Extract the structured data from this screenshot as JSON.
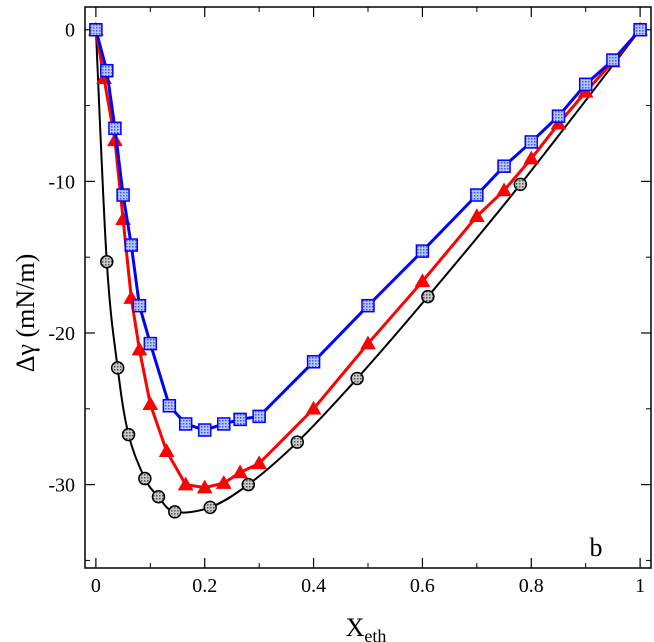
{
  "chart_data": {
    "type": "line",
    "title": "",
    "xlabel": "X",
    "xlabel_subscript": "eth",
    "ylabel": "Δγ (mN/m)",
    "xlim": [
      -0.02,
      1.02
    ],
    "ylim": [
      -35.5,
      1.5
    ],
    "xticks": [
      0,
      0.2,
      0.4,
      0.6,
      0.8,
      1
    ],
    "xtick_labels": [
      "0",
      "0.2",
      "0.4",
      "0.6",
      "0.8",
      "1"
    ],
    "yticks": [
      0,
      -10,
      -20,
      -30
    ],
    "ytick_labels": [
      "0",
      "-10",
      "-20",
      "-30"
    ],
    "panel_label": "b",
    "grid": false,
    "series": [
      {
        "name": "black circles",
        "color": "#000000",
        "marker": "circle",
        "marker_fill": "#b0b0b0",
        "x": [
          0,
          0.02,
          0.04,
          0.06,
          0.09,
          0.115,
          0.145,
          0.21,
          0.28,
          0.37,
          0.48,
          0.61,
          0.78,
          1.0
        ],
        "y": [
          0,
          -15.3,
          -22.3,
          -26.7,
          -29.6,
          -30.8,
          -31.8,
          -31.5,
          -30.0,
          -27.2,
          -23.0,
          -17.6,
          -10.2,
          0
        ]
      },
      {
        "name": "red triangles",
        "color": "#ff0000",
        "marker": "triangle",
        "marker_fill": "#ff0000",
        "x": [
          0,
          0.015,
          0.035,
          0.05,
          0.065,
          0.08,
          0.1,
          0.13,
          0.165,
          0.2,
          0.235,
          0.265,
          0.3,
          0.4,
          0.5,
          0.6,
          0.7,
          0.75,
          0.8,
          0.85,
          0.9,
          0.95,
          1.0
        ],
        "y": [
          0,
          -3.2,
          -7.3,
          -12.5,
          -17.7,
          -21.1,
          -24.7,
          -27.8,
          -30.0,
          -30.2,
          -29.9,
          -29.2,
          -28.6,
          -25.0,
          -20.7,
          -16.6,
          -12.3,
          -10.6,
          -8.5,
          -6.2,
          -4.1,
          -2.1,
          0
        ]
      },
      {
        "name": "blue squares",
        "color": "#0000ff",
        "marker": "square",
        "marker_fill": "#8fa6ff",
        "x": [
          0,
          0.02,
          0.035,
          0.05,
          0.065,
          0.08,
          0.1,
          0.135,
          0.165,
          0.2,
          0.235,
          0.265,
          0.3,
          0.4,
          0.5,
          0.6,
          0.7,
          0.75,
          0.8,
          0.85,
          0.9,
          0.95,
          1.0
        ],
        "y": [
          0,
          -2.7,
          -6.5,
          -10.9,
          -14.2,
          -18.2,
          -20.7,
          -24.8,
          -26.0,
          -26.4,
          -26.0,
          -25.7,
          -25.5,
          -21.9,
          -18.2,
          -14.6,
          -10.9,
          -9.0,
          -7.4,
          -5.7,
          -3.6,
          -2.0,
          0
        ]
      }
    ]
  }
}
